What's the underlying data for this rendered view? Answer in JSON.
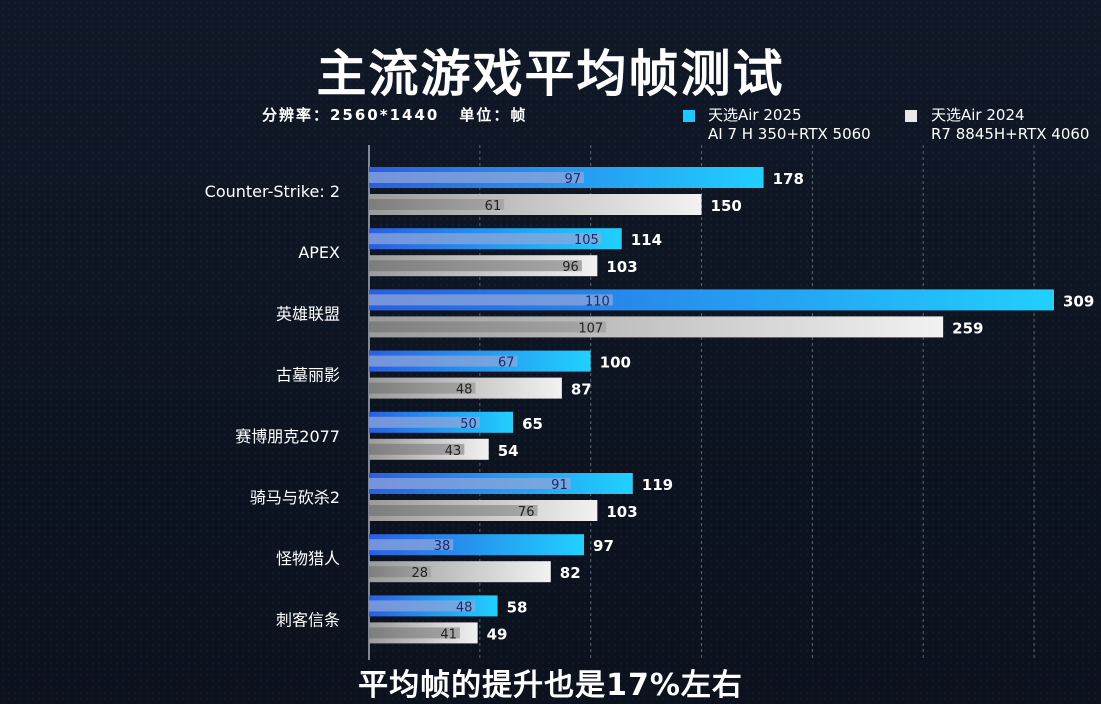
{
  "header": {
    "title": "主流游戏平均帧测试",
    "resolution": "分辨率：2560*1440",
    "unit": "单位：帧"
  },
  "legend": [
    {
      "name": "天选Air 2025",
      "spec": "AI 7 H 350+RTX 5060",
      "color": "#1ec8ff"
    },
    {
      "name": "天选Air 2024",
      "spec": "R7 8845H+RTX 4060",
      "color": "#e8e8e8"
    }
  ],
  "subtitle": "平均帧的提升也是17%左右",
  "chart_data": {
    "type": "bar",
    "orientation": "horizontal",
    "categories": [
      "Counter-Strike: 2",
      "APEX",
      "英雄联盟",
      "古墓丽影",
      "赛博朋克2077",
      "骑马与砍杀2",
      "怪物猎人",
      "刺客信条"
    ],
    "series": [
      {
        "name": "天选Air 2025",
        "color": "#1ec8ff",
        "values": [
          178,
          114,
          309,
          100,
          65,
          119,
          97,
          58
        ],
        "inner_values": [
          97,
          105,
          110,
          67,
          50,
          91,
          38,
          48
        ]
      },
      {
        "name": "天选Air 2024",
        "color": "#e8e8e8",
        "values": [
          150,
          103,
          259,
          87,
          54,
          103,
          82,
          49
        ],
        "inner_values": [
          61,
          96,
          107,
          48,
          43,
          76,
          28,
          41
        ]
      }
    ],
    "xlim": [
      0,
      309
    ],
    "grid": true
  }
}
